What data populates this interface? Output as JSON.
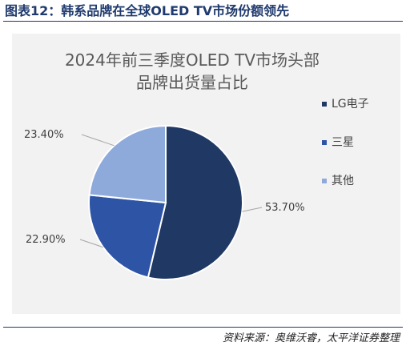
{
  "header": {
    "figure_title": "图表12：韩系品牌在全球OLED TV市场份额领先"
  },
  "chart_data": {
    "type": "pie",
    "title_lines": [
      "2024年前三季度OLED TV市场头部",
      "品牌出货量占比"
    ],
    "categories": [
      "LG电子",
      "三星",
      "其他"
    ],
    "values": [
      53.7,
      22.9,
      23.4
    ],
    "data_labels": [
      "53.70%",
      "22.90%",
      "23.40%"
    ],
    "colors": [
      "#1f3864",
      "#2e54a6",
      "#8eaadb"
    ],
    "legend_position": "right"
  },
  "footer": {
    "source": "资料来源：奥维沃睿，太平洋证券整理"
  }
}
